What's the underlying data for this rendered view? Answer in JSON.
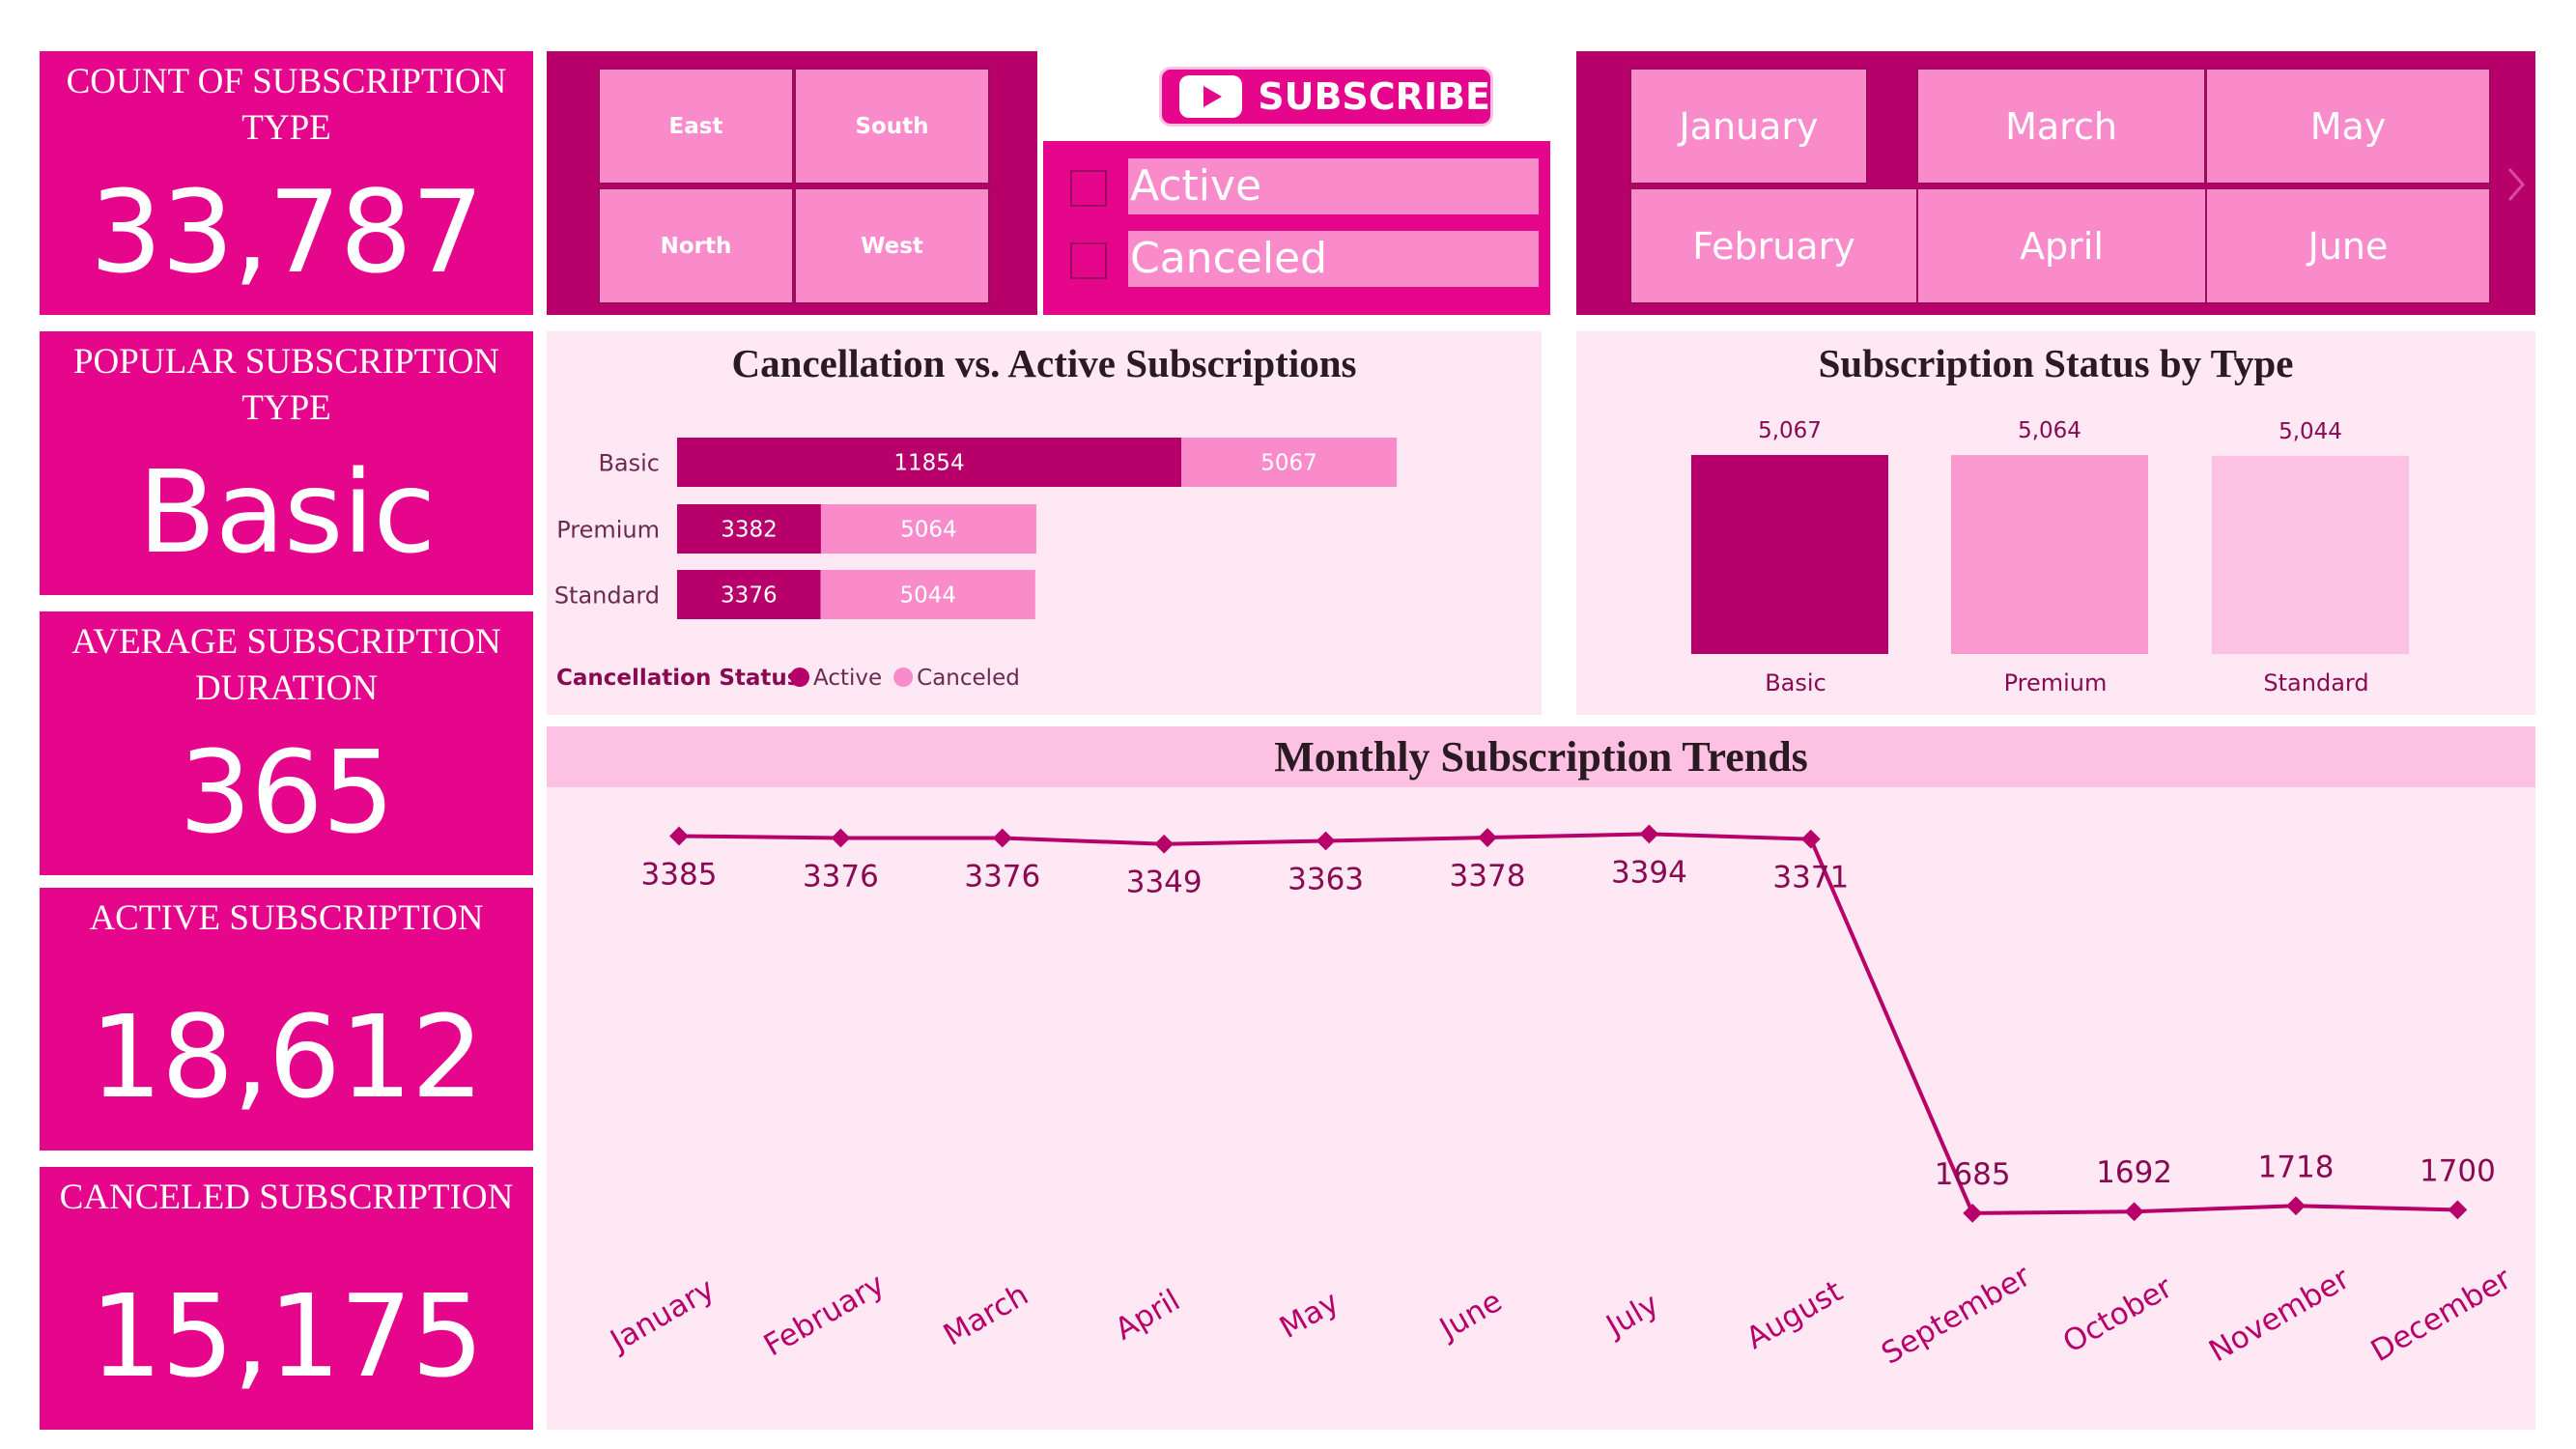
{
  "kpis": {
    "count_title": "COUNT OF SUBSCRIPTION TYPE",
    "count_value": "33,787",
    "popular_title": "POPULAR SUBSCRIPTION TYPE",
    "popular_value": "Basic",
    "avg_title": "AVERAGE SUBSCRIPTION DURATION",
    "avg_value": "365",
    "active_title": "ACTIVE SUBSCRIPTION",
    "active_value": "18,612",
    "canceled_title": "CANCELED SUBSCRIPTION",
    "canceled_value": "15,175"
  },
  "region_slicer": {
    "items": [
      "East",
      "South",
      "North",
      "West"
    ]
  },
  "subscribe_logo": {
    "label": "SUBSCRIBE"
  },
  "status_slicer": {
    "items": [
      "Active",
      "Canceled"
    ]
  },
  "month_slicer": {
    "items": [
      "January",
      "March",
      "May",
      "February",
      "April",
      "June"
    ],
    "next_icon": "chevron-right-icon"
  },
  "colors": {
    "primary": "#e5068b",
    "dark": "#b8006a",
    "light": "#fa8bcb",
    "lighter": "#fdc2e3",
    "panel": "#fde8f4"
  },
  "chart_data": [
    {
      "type": "bar",
      "orientation": "horizontal-stacked",
      "title": "Cancellation vs. Active Subscriptions",
      "categories": [
        "Basic",
        "Premium",
        "Standard"
      ],
      "series": [
        {
          "name": "Active",
          "values": [
            11854,
            3382,
            3376
          ],
          "color": "#b8006a"
        },
        {
          "name": "Canceled",
          "values": [
            5067,
            5064,
            5044
          ],
          "color": "#fa8bcb"
        }
      ],
      "legend_title": "Cancellation Status",
      "legend_position": "bottom-left",
      "grid": false
    },
    {
      "type": "bar",
      "title": "Subscription Status by Type",
      "categories": [
        "Basic",
        "Premium",
        "Standard"
      ],
      "values": [
        5067,
        5064,
        5044
      ],
      "data_labels": [
        "5,067",
        "5,064",
        "5,044"
      ],
      "colors": [
        "#b8006a",
        "#fa99cf",
        "#fdc2e3"
      ],
      "grid": false
    },
    {
      "type": "line",
      "title": "Monthly Subscription Trends",
      "x": [
        "January",
        "February",
        "March",
        "April",
        "May",
        "June",
        "July",
        "August",
        "September",
        "October",
        "November",
        "December"
      ],
      "values": [
        3385,
        3376,
        3376,
        3349,
        3363,
        3378,
        3394,
        3371,
        1685,
        1692,
        1718,
        1700
      ],
      "color": "#b8006a",
      "grid": false
    }
  ]
}
